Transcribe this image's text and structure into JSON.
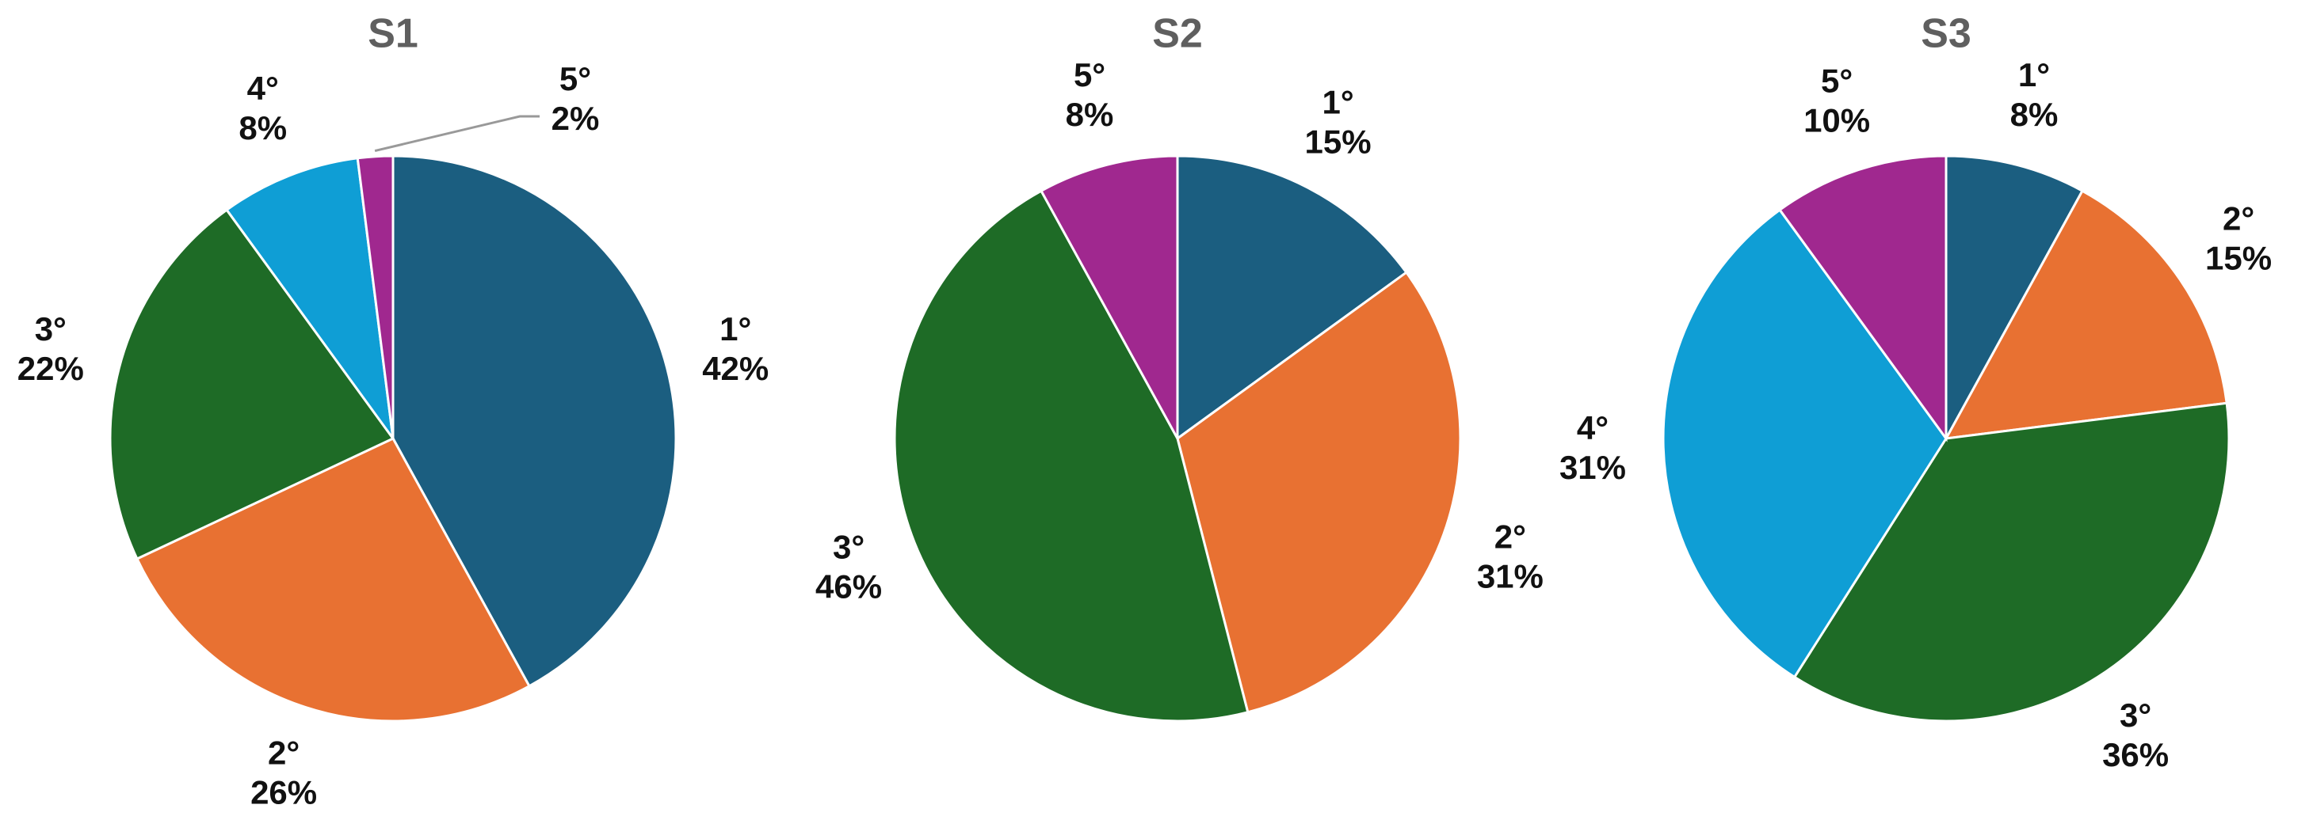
{
  "chart_data": [
    {
      "type": "pie",
      "title": "S1",
      "categories": [
        "1°",
        "2°",
        "3°",
        "4°",
        "5°"
      ],
      "values": [
        42,
        26,
        22,
        8,
        2
      ],
      "value_labels": [
        "42%",
        "26%",
        "22%",
        "8%",
        "2%"
      ],
      "colors": [
        "#1b5e80",
        "#e87132",
        "#1e6b26",
        "#0f9ed5",
        "#a0288f"
      ]
    },
    {
      "type": "pie",
      "title": "S2",
      "categories": [
        "1°",
        "2°",
        "3°",
        "5°"
      ],
      "values": [
        15,
        31,
        46,
        8
      ],
      "value_labels": [
        "15%",
        "31%",
        "46%",
        "8%"
      ],
      "colors": [
        "#1b5e80",
        "#e87132",
        "#1e6b26",
        "#a0288f"
      ]
    },
    {
      "type": "pie",
      "title": "S3",
      "categories": [
        "1°",
        "2°",
        "3°",
        "4°",
        "5°"
      ],
      "values": [
        8,
        15,
        36,
        31,
        10
      ],
      "value_labels": [
        "8%",
        "15%",
        "36%",
        "31%",
        "10%"
      ],
      "colors": [
        "#1b5e80",
        "#e87132",
        "#1e6b26",
        "#0f9ed5",
        "#a0288f"
      ]
    }
  ]
}
